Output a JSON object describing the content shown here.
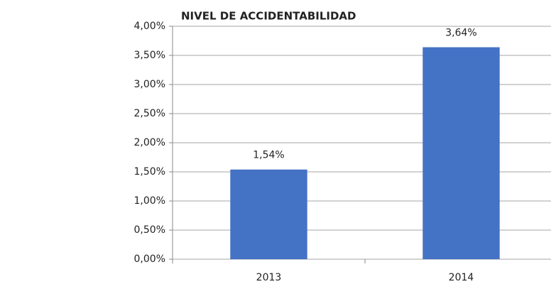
{
  "chart_data": {
    "type": "bar",
    "title": "NIVEL DE ACCIDENTABILIDAD",
    "categories": [
      "2013",
      "2014"
    ],
    "values": [
      1.54,
      3.64
    ],
    "value_labels": [
      "1,54%",
      "3,64%"
    ],
    "color": "#4472c4",
    "ylim": [
      0,
      4
    ],
    "yticks": [
      {
        "value": 0,
        "label": "0,00%"
      },
      {
        "value": 0.5,
        "label": "0,50%"
      },
      {
        "value": 1,
        "label": "1,00%"
      },
      {
        "value": 1.5,
        "label": "1,50%"
      },
      {
        "value": 2,
        "label": "2,00%"
      },
      {
        "value": 2.5,
        "label": "2,50%"
      },
      {
        "value": 3,
        "label": "3,00%"
      },
      {
        "value": 3.5,
        "label": "3,50%"
      },
      {
        "value": 4,
        "label": "4,00%"
      }
    ],
    "grid": true
  }
}
